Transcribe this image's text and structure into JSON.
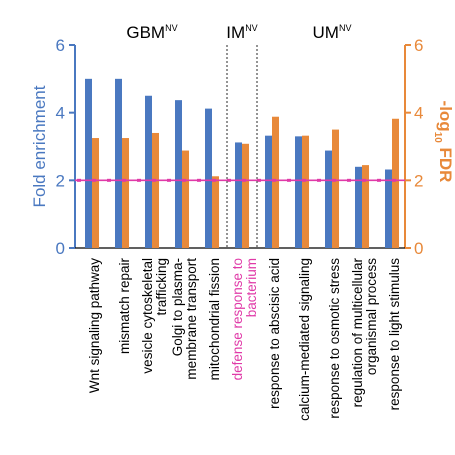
{
  "chart_data": {
    "type": "bar",
    "groups": [
      {
        "name": "GBM",
        "sup": "NV"
      },
      {
        "name": "IM",
        "sup": "NV"
      },
      {
        "name": "UM",
        "sup": "NV"
      }
    ],
    "categories": [
      {
        "lines": [
          "Wnt signaling pathway"
        ],
        "group": 0
      },
      {
        "lines": [
          "mismatch repair"
        ],
        "group": 0
      },
      {
        "lines": [
          "vesicle cytoskeletal",
          "trafficking"
        ],
        "group": 0
      },
      {
        "lines": [
          "Golgi to plasma-",
          "membrane transport"
        ],
        "group": 0
      },
      {
        "lines": [
          "mitochondrial fission"
        ],
        "group": 0
      },
      {
        "lines": [
          "defense response to",
          "bacterium"
        ],
        "group": 1,
        "color": "#e03aa8"
      },
      {
        "lines": [
          "response to abscisic acid"
        ],
        "group": 2
      },
      {
        "lines": [
          "calcium-mediated signaling"
        ],
        "group": 2
      },
      {
        "lines": [
          "response to osmotic stress"
        ],
        "group": 2
      },
      {
        "lines": [
          "regulation of multicellular",
          "organismal process"
        ],
        "group": 2
      },
      {
        "lines": [
          "response to light stimulus"
        ],
        "group": 2
      }
    ],
    "series": [
      {
        "axis": "left",
        "color": "#4a78c0",
        "values": [
          5.0,
          5.0,
          4.5,
          4.37,
          4.12,
          3.12,
          3.32,
          3.3,
          2.88,
          2.4,
          2.32
        ]
      },
      {
        "axis": "right",
        "color": "#e8893a",
        "values": [
          3.25,
          3.25,
          3.4,
          2.88,
          2.12,
          3.08,
          3.88,
          3.32,
          3.5,
          2.45,
          3.82
        ]
      }
    ],
    "y_left": {
      "label": "Fold enrichment",
      "min": 0,
      "max": 6,
      "ticks": [
        "0",
        "2",
        "4",
        "6"
      ]
    },
    "y_right": {
      "label_main": "-log",
      "label_sub": "10",
      "label_end": " FDR",
      "min": 0,
      "max": 6,
      "ticks": [
        "0",
        "2",
        "4",
        "6"
      ]
    },
    "threshold": {
      "value": 2,
      "color": "#e03aa8"
    },
    "colors": {
      "text": "#000000"
    }
  }
}
